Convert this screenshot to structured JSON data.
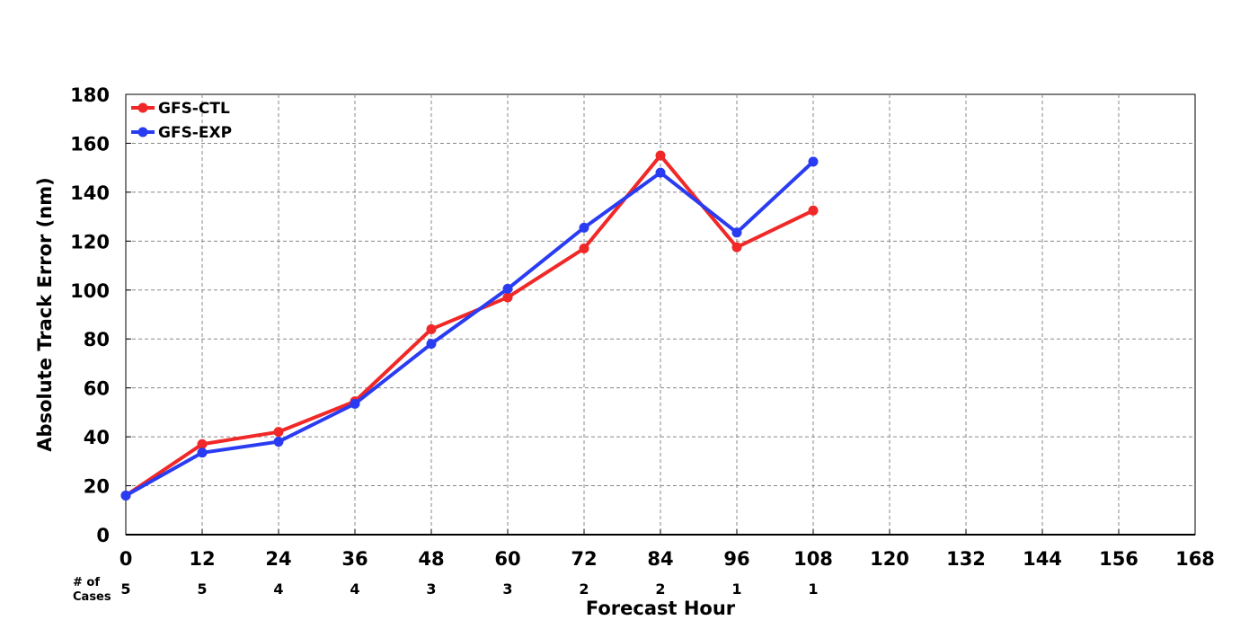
{
  "chart_data": {
    "type": "line",
    "title": "",
    "xlabel": "Forecast Hour",
    "ylabel": "Absolute Track Error (nm)",
    "xlim": [
      0,
      168
    ],
    "ylim": [
      0,
      180
    ],
    "x_ticks": [
      "0",
      "12",
      "24",
      "36",
      "48",
      "60",
      "72",
      "84",
      "96",
      "108",
      "120",
      "132",
      "144",
      "156",
      "168"
    ],
    "y_ticks": [
      "0",
      "20",
      "40",
      "60",
      "80",
      "100",
      "120",
      "140",
      "160",
      "180"
    ],
    "grid": true,
    "legend_position": "top-left",
    "x": [
      0,
      12,
      24,
      36,
      48,
      60,
      72,
      84,
      96,
      108
    ],
    "series": [
      {
        "name": "GFS-CTL",
        "color": "#f02828",
        "values": [
          16,
          37,
          42,
          54.5,
          84,
          97,
          117,
          155,
          117.5,
          132.5
        ]
      },
      {
        "name": "GFS-EXP",
        "color": "#2a3cf2",
        "values": [
          16,
          33.5,
          38,
          53.5,
          78,
          100.5,
          125.5,
          148,
          123.5,
          152.5
        ]
      }
    ],
    "cases_label": [
      "# of",
      "Cases"
    ],
    "cases": [
      "5",
      "5",
      "4",
      "4",
      "3",
      "3",
      "2",
      "2",
      "1",
      "1"
    ]
  }
}
